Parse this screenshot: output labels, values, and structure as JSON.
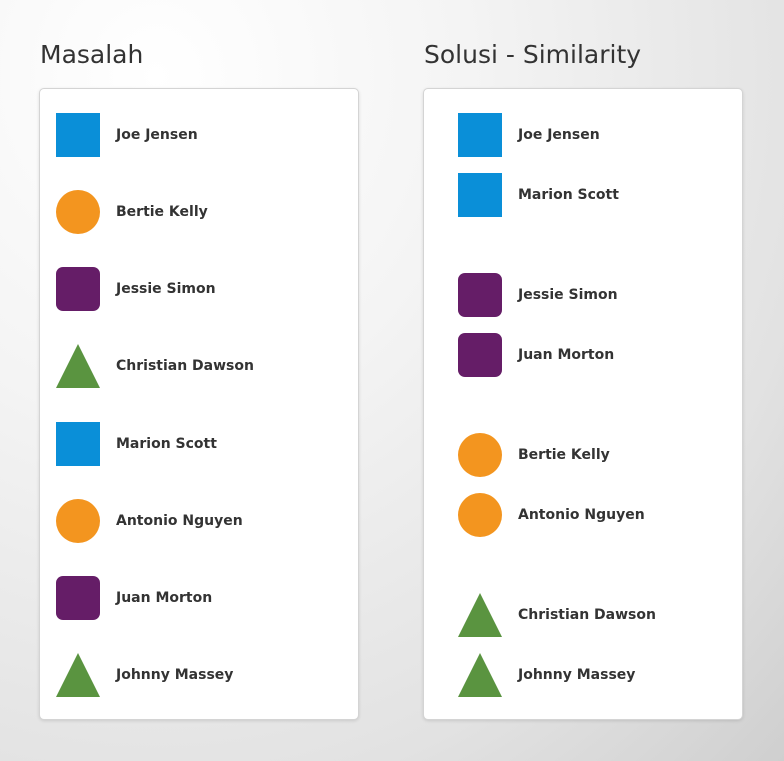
{
  "problem": {
    "title": "Masalah",
    "items": [
      {
        "name": "Joe Jensen",
        "shape": "square",
        "color": "#0a8fd8"
      },
      {
        "name": "Bertie Kelly",
        "shape": "circle",
        "color": "#f3951f"
      },
      {
        "name": "Jessie Simon",
        "shape": "rounded-square",
        "color": "#651d67"
      },
      {
        "name": "Christian Dawson",
        "shape": "triangle",
        "color": "#5a9440"
      },
      {
        "name": "Marion Scott",
        "shape": "square",
        "color": "#0a8fd8"
      },
      {
        "name": "Antonio Nguyen",
        "shape": "circle",
        "color": "#f3951f"
      },
      {
        "name": "Juan Morton",
        "shape": "rounded-square",
        "color": "#651d67"
      },
      {
        "name": "Johnny Massey",
        "shape": "triangle",
        "color": "#5a9440"
      }
    ]
  },
  "solution": {
    "title": "Solusi - Similarity",
    "items": [
      {
        "name": "Joe Jensen",
        "shape": "square",
        "color": "#0a8fd8"
      },
      {
        "name": "Marion Scott",
        "shape": "square",
        "color": "#0a8fd8"
      },
      {
        "name": "Jessie Simon",
        "shape": "rounded-square",
        "color": "#651d67"
      },
      {
        "name": "Juan Morton",
        "shape": "rounded-square",
        "color": "#651d67"
      },
      {
        "name": "Bertie Kelly",
        "shape": "circle",
        "color": "#f3951f"
      },
      {
        "name": "Antonio Nguyen",
        "shape": "circle",
        "color": "#f3951f"
      },
      {
        "name": "Christian Dawson",
        "shape": "triangle",
        "color": "#5a9440"
      },
      {
        "name": "Johnny Massey",
        "shape": "triangle",
        "color": "#5a9440"
      }
    ]
  }
}
